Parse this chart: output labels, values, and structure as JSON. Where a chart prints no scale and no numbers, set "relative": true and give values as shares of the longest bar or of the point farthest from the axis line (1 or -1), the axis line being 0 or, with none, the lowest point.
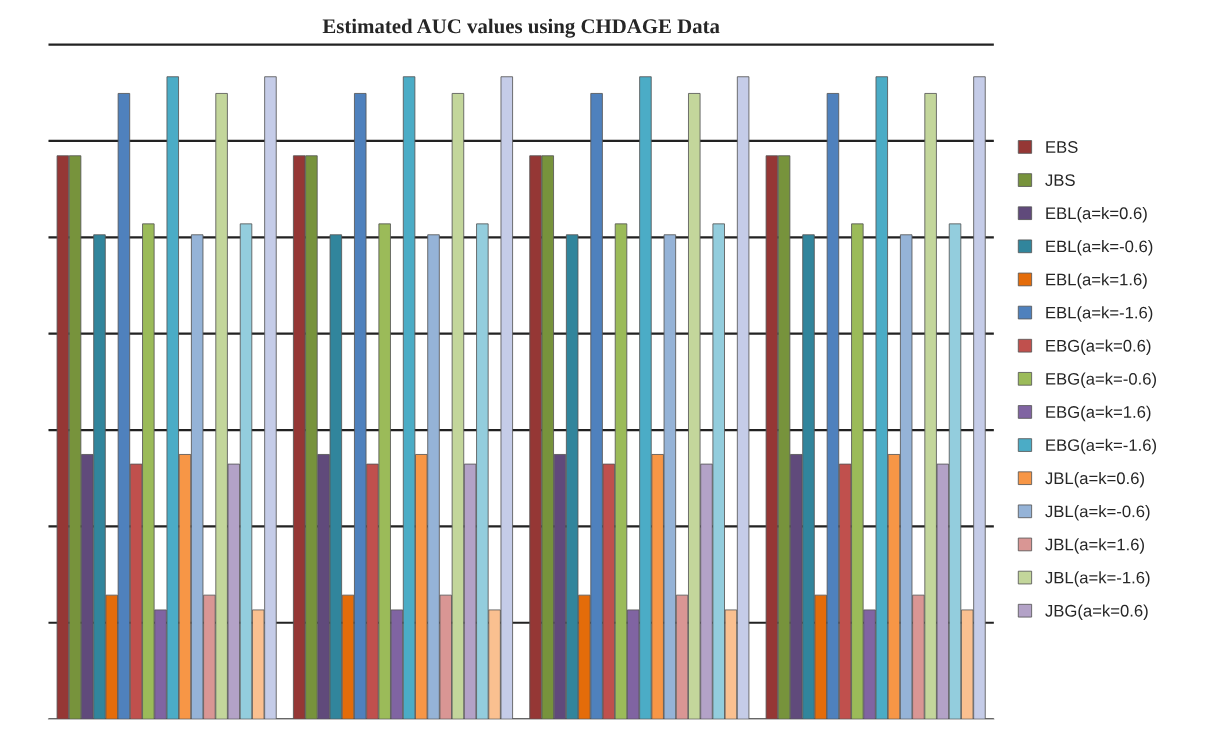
{
  "chart_data": {
    "type": "bar",
    "title": "Estimated AUC values using CHDAGE Data",
    "relative": true,
    "categories": [
      null,
      null,
      null,
      null
    ],
    "grid": "y",
    "legend": "right",
    "series": [
      {
        "name": "EBS",
        "color": "#953735",
        "values": [
          0.877,
          0.877,
          0.877,
          0.877
        ]
      },
      {
        "name": "JBS",
        "color": "#77933c",
        "values": [
          0.877,
          0.877,
          0.877,
          0.877
        ]
      },
      {
        "name": "EBL(a=k=0.6)",
        "color": "#604a7b",
        "values": [
          0.412,
          0.412,
          0.412,
          0.412
        ]
      },
      {
        "name": "EBL(a=k=-0.6)",
        "color": "#31859c",
        "values": [
          0.754,
          0.754,
          0.754,
          0.754
        ]
      },
      {
        "name": "EBL(a=k=1.6)",
        "color": "#e46c0a",
        "values": [
          0.193,
          0.193,
          0.193,
          0.193
        ]
      },
      {
        "name": "EBL(a=k=-1.6)",
        "color": "#4f81bd",
        "values": [
          0.974,
          0.974,
          0.974,
          0.974
        ]
      },
      {
        "name": "EBG(a=k=0.6)",
        "color": "#c0504d",
        "values": [
          0.397,
          0.397,
          0.397,
          0.397
        ]
      },
      {
        "name": "EBG(a=k=-0.6)",
        "color": "#9bbb59",
        "values": [
          0.771,
          0.771,
          0.771,
          0.771
        ]
      },
      {
        "name": "EBG(a=k=1.6)",
        "color": "#8064a2",
        "values": [
          0.17,
          0.17,
          0.17,
          0.17
        ]
      },
      {
        "name": "EBG(a=k=-1.6)",
        "color": "#4bacc6",
        "values": [
          1,
          1,
          1,
          1
        ]
      },
      {
        "name": "JBL(a=k=0.6)",
        "color": "#f79646",
        "values": [
          0.412,
          0.412,
          0.412,
          0.412
        ]
      },
      {
        "name": "JBL(a=k=-0.6)",
        "color": "#95b3d7",
        "values": [
          0.754,
          0.754,
          0.754,
          0.754
        ]
      },
      {
        "name": "JBL(a=k=1.6)",
        "color": "#d99694",
        "values": [
          0.193,
          0.193,
          0.193,
          0.193
        ]
      },
      {
        "name": "JBL(a=k=-1.6)",
        "color": "#c3d69b",
        "values": [
          0.974,
          0.974,
          0.974,
          0.974
        ]
      },
      {
        "name": "JBG(a=k=0.6)",
        "color": "#b3a2c7",
        "values": [
          0.397,
          0.397,
          0.397,
          0.397
        ]
      },
      {
        "color": "#93cddd",
        "values": [
          0.771,
          0.771,
          0.771,
          0.771
        ]
      },
      {
        "color": "#fac090",
        "values": [
          0.17,
          0.17,
          0.17,
          0.17
        ]
      },
      {
        "color": "#c5cce8",
        "values": [
          1,
          1,
          1,
          1
        ]
      }
    ]
  }
}
